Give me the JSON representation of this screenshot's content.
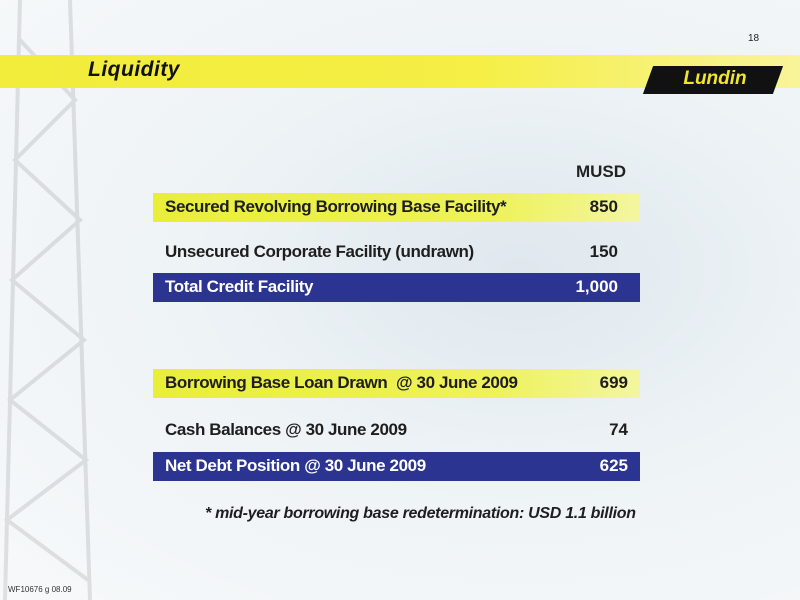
{
  "page_number": "18",
  "title": "Liquidity",
  "logo": "Lundin",
  "unit": "MUSD",
  "rows": [
    {
      "label": "Secured Revolving Borrowing Base Facility*",
      "value": "850"
    },
    {
      "label": "Unsecured Corporate Facility (undrawn)",
      "value": "150"
    },
    {
      "label": "Total Credit Facility",
      "value": "1,000"
    },
    {
      "label": "Borrowing Base Loan Drawn  @ 30 June 2009",
      "value": "699"
    },
    {
      "label": "Cash Balances @ 30 June 2009",
      "value": "74"
    },
    {
      "label": "Net Debt Position @ 30 June 2009",
      "value": "625"
    }
  ],
  "footnote": "* mid-year borrowing base redetermination: USD 1.1 billion",
  "doc_code": "WF10676 g 08.09"
}
